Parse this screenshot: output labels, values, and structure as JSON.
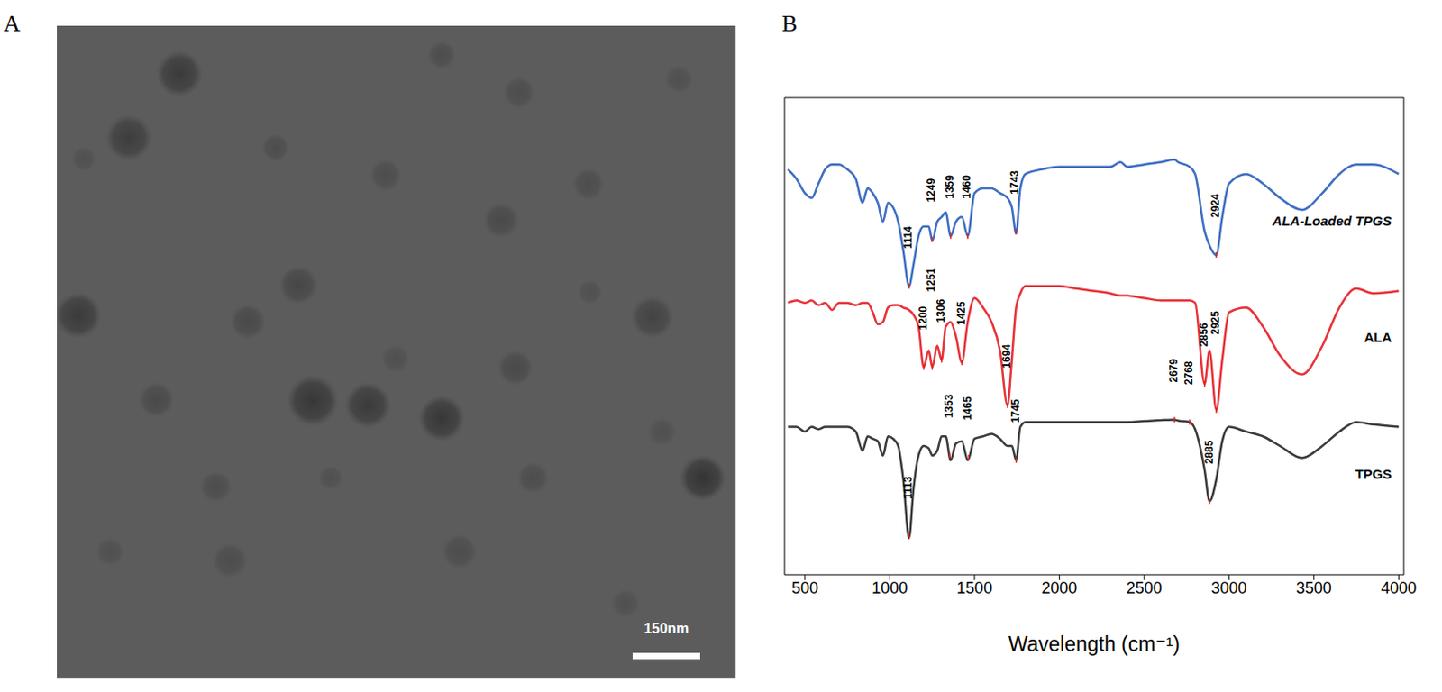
{
  "panel_labels": [
    "A",
    "B"
  ],
  "image": {
    "scale_bar": "150nm"
  },
  "chart_data": {
    "type": "line",
    "x_label": "Wavelength (cm⁻¹)",
    "xlim": [
      380,
      4030
    ],
    "xticks": [
      500,
      1000,
      1500,
      2000,
      2500,
      3000,
      3500,
      4000
    ],
    "ylim": [
      0,
      100
    ],
    "tick_labels": "x",
    "grid": false,
    "x": [
      400,
      450,
      500,
      540,
      580,
      620,
      660,
      700,
      750,
      800,
      840,
      870,
      900,
      930,
      960,
      990,
      1020,
      1050,
      1080,
      1114,
      1140,
      1170,
      1200,
      1230,
      1251,
      1280,
      1306,
      1330,
      1359,
      1390,
      1425,
      1460,
      1500,
      1550,
      1600,
      1650,
      1694,
      1720,
      1745,
      1770,
      1800,
      1900,
      2000,
      2100,
      2200,
      2300,
      2360,
      2400,
      2500,
      2600,
      2679,
      2700,
      2768,
      2800,
      2856,
      2885,
      2925,
      2960,
      3000,
      3100,
      3200,
      3300,
      3430,
      3550,
      3650,
      3750,
      3850,
      4000
    ],
    "series": [
      {
        "name": "ALA-Loaded TPGS",
        "color": "#3f6fc4",
        "values": [
          85,
          83,
          80,
          79,
          82,
          85,
          86,
          86,
          85,
          83,
          78,
          81,
          80,
          78,
          74,
          78,
          77,
          74,
          68,
          60.5,
          65,
          71,
          73,
          73,
          70,
          74,
          75,
          76,
          71,
          74,
          75,
          71,
          80,
          81,
          81,
          80,
          79,
          77,
          71.5,
          81,
          84,
          85,
          85.5,
          85.5,
          85.5,
          85.5,
          86.5,
          85.5,
          86,
          86.5,
          87,
          86.5,
          85.5,
          84,
          72,
          69,
          67,
          75,
          82,
          84,
          82,
          79,
          76.5,
          80,
          84,
          86,
          86,
          84
        ],
        "peaks": [
          1114,
          1249,
          1359,
          1460,
          1743,
          2924
        ]
      },
      {
        "name": "ALA",
        "color": "#e8333a",
        "values": [
          57,
          57.5,
          57,
          57.5,
          56.5,
          57,
          55.5,
          57,
          57,
          56.5,
          57,
          57,
          55,
          52.5,
          53,
          56,
          56.5,
          56.5,
          56,
          55.5,
          54.5,
          52,
          43.5,
          47,
          43.5,
          48,
          45,
          52,
          53,
          50,
          44.5,
          53,
          58,
          56,
          53,
          47,
          35.5,
          45,
          56,
          59,
          60.5,
          60.5,
          60.5,
          60,
          59.5,
          59,
          58.5,
          58.5,
          58,
          57.5,
          57.5,
          57.5,
          57.5,
          57,
          40,
          47,
          34.5,
          45,
          55,
          56,
          52,
          46,
          42,
          48,
          56,
          60,
          59,
          59.5
        ],
        "peaks": [
          1200,
          1251,
          1306,
          1425,
          1694,
          2856,
          2925
        ]
      },
      {
        "name": "TPGS",
        "color": "#3c3c3c",
        "values": [
          31,
          31,
          30,
          31,
          30.5,
          31,
          31,
          31,
          31,
          30,
          26,
          29,
          28.5,
          28,
          25,
          29,
          28.5,
          27,
          20,
          7.7,
          18,
          25,
          27,
          26.5,
          25,
          26,
          29,
          29,
          24,
          27.5,
          28,
          24,
          28.5,
          29,
          29.5,
          28.5,
          27,
          27,
          24,
          31,
          32,
          32,
          32,
          32,
          32,
          32,
          32,
          32,
          32.2,
          32.4,
          32.5,
          32.3,
          32,
          30.5,
          22,
          15.4,
          20,
          28,
          31,
          30,
          29,
          27,
          24.5,
          27,
          30,
          32,
          31.5,
          31
        ],
        "peaks": [
          1113,
          1353,
          1465,
          1745,
          2679,
          2768,
          2885
        ]
      }
    ]
  }
}
